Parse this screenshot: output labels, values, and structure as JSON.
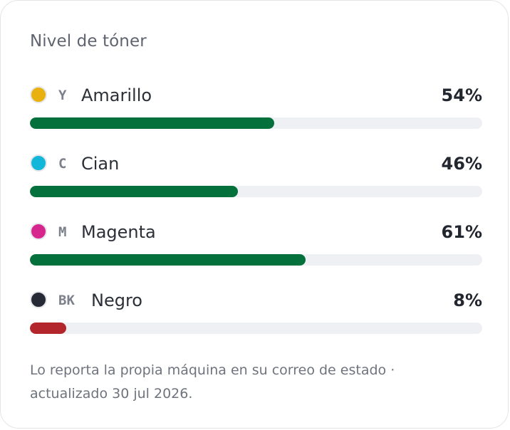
{
  "card": {
    "title": "Nivel de tóner",
    "toners": [
      {
        "code": "Y",
        "name": "Amarillo",
        "percent_label": "54%",
        "level": 54,
        "color": "#e9b10f",
        "bar_color": "#04703c"
      },
      {
        "code": "C",
        "name": "Cian",
        "percent_label": "46%",
        "level": 46,
        "color": "#12b6d8",
        "bar_color": "#04703c"
      },
      {
        "code": "M",
        "name": "Magenta",
        "percent_label": "61%",
        "level": 61,
        "color": "#d6268e",
        "bar_color": "#04703c"
      },
      {
        "code": "BK",
        "name": "Negro",
        "percent_label": "8%",
        "level": 8,
        "color": "#252a36",
        "bar_color": "#b3262b"
      }
    ],
    "footnote_line1": "Lo reporta la propia máquina en su correo de estado ·",
    "footnote_line2": "actualizado 30 jul 2026."
  }
}
